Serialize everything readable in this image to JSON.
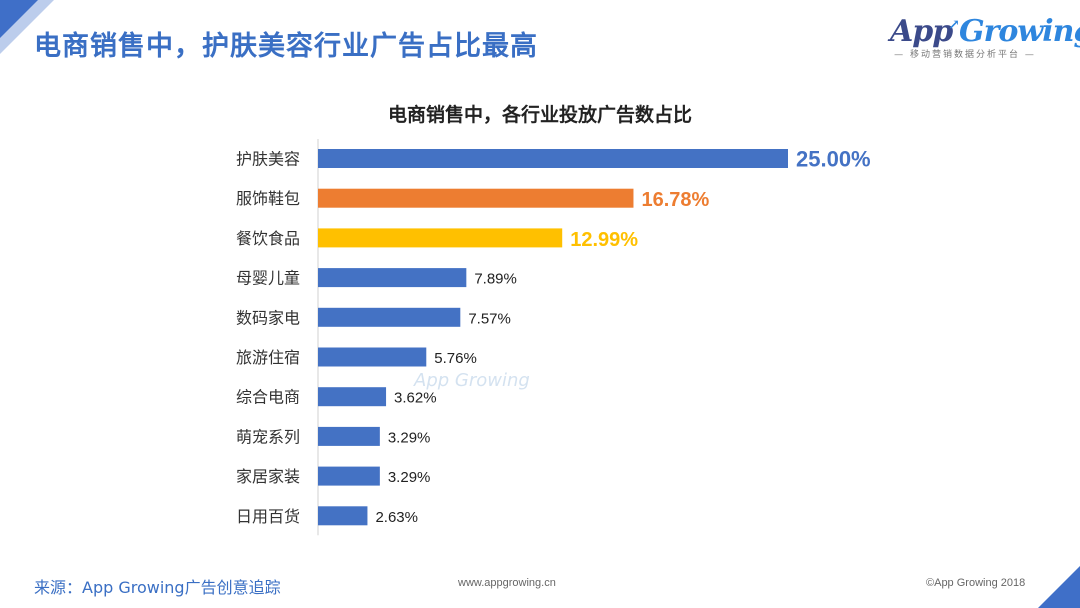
{
  "page": {
    "title": "电商销售中，护肤美容行业广告占比最高",
    "watermark": "App Growing",
    "logo": {
      "brand_left": "App",
      "brand_right": "Growing",
      "tagline": "— 移动营销数据分析平台 —"
    },
    "footer": {
      "source": "来源：App Growing广告创意追踪",
      "site": "www.appgrowing.cn",
      "copyright": "©App Growing 2018"
    }
  },
  "colors": {
    "accent": "#3a6fc4",
    "bar_default": "#4472c4",
    "bar_second": "#ed7d31",
    "bar_third": "#ffc000",
    "label_default": "#222222"
  },
  "chart_data": {
    "type": "bar",
    "orientation": "horizontal",
    "title": "电商销售中，各行业投放广告数占比",
    "categories": [
      "护肤美容",
      "服饰鞋包",
      "餐饮食品",
      "母婴儿童",
      "数码家电",
      "旅游住宿",
      "综合电商",
      "萌宠系列",
      "家居家装",
      "日用百货"
    ],
    "values": [
      25.0,
      16.78,
      12.99,
      7.89,
      7.57,
      5.76,
      3.62,
      3.29,
      3.29,
      2.63
    ],
    "labels": [
      "25.00%",
      "16.78%",
      "12.99%",
      "7.89%",
      "7.57%",
      "5.76%",
      "3.62%",
      "3.29%",
      "3.29%",
      "2.63%"
    ],
    "highlight": [
      "blue",
      "orange",
      "yellow",
      "blue",
      "blue",
      "blue",
      "blue",
      "blue",
      "blue",
      "blue"
    ],
    "xlim": [
      0,
      25
    ],
    "unit": "%",
    "grid": false,
    "legend": "none"
  }
}
